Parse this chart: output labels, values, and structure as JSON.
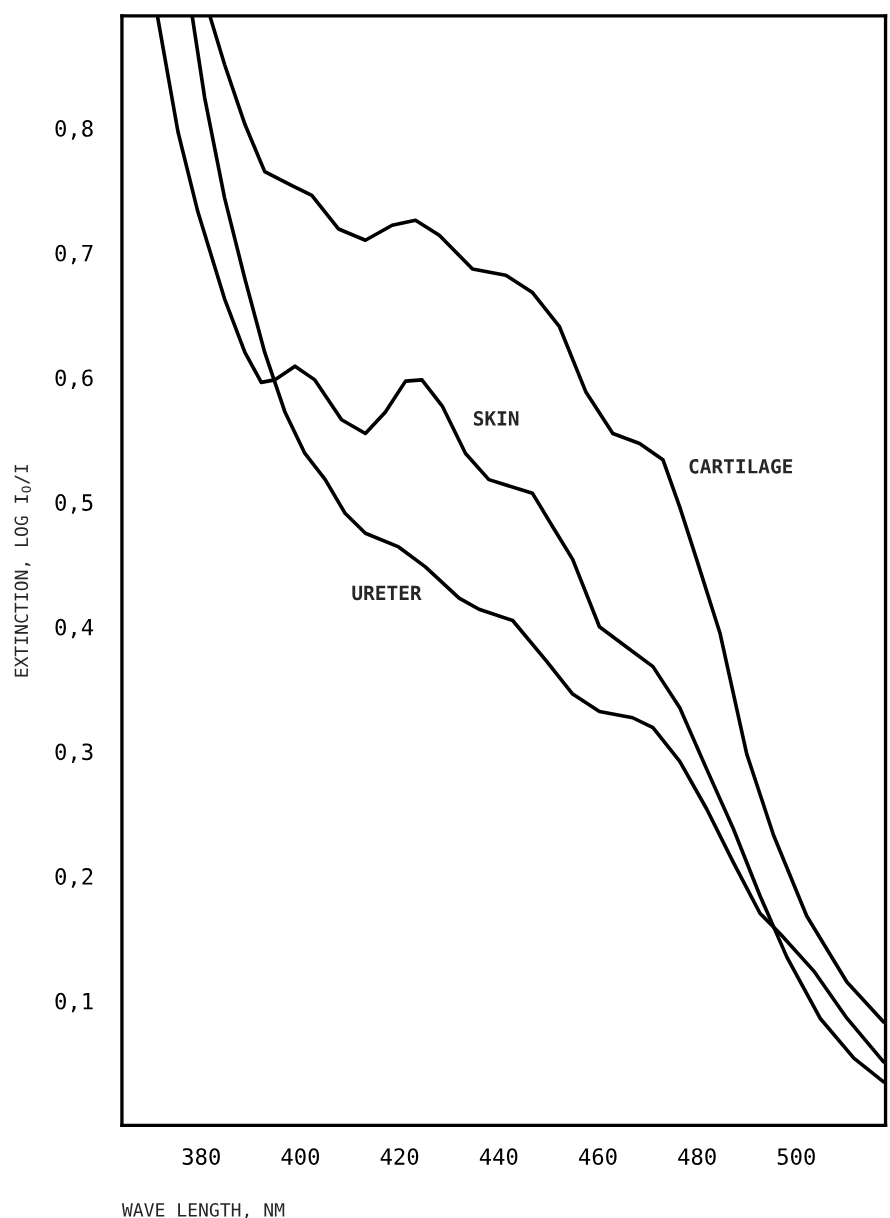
{
  "chart_data": {
    "type": "line",
    "xlabel": "WAVE LENGTH, NM",
    "ylabel": "EXTINCTION, LOG I$_{0}$/I",
    "xlim": [
      364,
      518
    ],
    "xticks": [
      380,
      400,
      420,
      440,
      460,
      480,
      500
    ],
    "ylim": [
      0,
      0.89
    ],
    "yticks": [
      {
        "value": 0.1,
        "label": "0,1"
      },
      {
        "value": 0.2,
        "label": "0,2"
      },
      {
        "value": 0.3,
        "label": "0,3"
      },
      {
        "value": 0.4,
        "label": "0,4"
      },
      {
        "value": 0.5,
        "label": "0,5"
      },
      {
        "value": 0.6,
        "label": "0,6"
      },
      {
        "value": 0.7,
        "label": "0,7"
      },
      {
        "value": 0.8,
        "label": "0,8"
      }
    ],
    "grid": false,
    "marker": "none",
    "line_style": "solid",
    "series": [
      {
        "color": "#000000",
        "x": [
          381.8,
          384.7,
          388.8,
          392.8,
          398.2,
          402.3,
          407.7,
          413.1,
          418.5,
          423.2,
          428.0,
          434.7,
          441.4,
          446.8,
          452.2,
          457.6,
          463.0,
          468.4,
          473.1,
          476.5,
          479.9,
          484.6,
          490.0,
          495.4,
          502.1,
          510.2,
          517.6
        ],
        "values": [
          0.889,
          0.851,
          0.803,
          0.765,
          0.754,
          0.746,
          0.719,
          0.71,
          0.722,
          0.726,
          0.714,
          0.687,
          0.682,
          0.668,
          0.641,
          0.588,
          0.555,
          0.547,
          0.534,
          0.496,
          0.454,
          0.395,
          0.298,
          0.233,
          0.168,
          0.115,
          0.083
        ]
      },
      {
        "color": "#000000",
        "x": [
          371.2,
          375.3,
          379.3,
          384.7,
          388.8,
          392.1,
          394.8,
          398.9,
          402.9,
          408.3,
          413.1,
          417.1,
          421.2,
          424.5,
          428.6,
          433.3,
          438.0,
          446.8,
          450.9,
          454.9,
          460.3,
          465.7,
          471.1,
          476.5,
          481.9,
          487.3,
          492.7,
          498.1,
          504.8,
          511.6,
          517.6
        ],
        "values": [
          0.889,
          0.797,
          0.733,
          0.663,
          0.62,
          0.596,
          0.598,
          0.609,
          0.598,
          0.566,
          0.555,
          0.572,
          0.597,
          0.598,
          0.577,
          0.539,
          0.518,
          0.507,
          0.48,
          0.454,
          0.4,
          0.384,
          0.368,
          0.335,
          0.286,
          0.238,
          0.184,
          0.135,
          0.086,
          0.054,
          0.035
        ]
      },
      {
        "color": "#000000",
        "x": [
          378.2,
          380.7,
          384.7,
          388.8,
          392.8,
          396.9,
          400.9,
          405.0,
          409.0,
          413.1,
          419.8,
          425.2,
          432.0,
          436.0,
          442.8,
          449.5,
          454.9,
          460.3,
          467.0,
          471.1,
          476.5,
          481.9,
          487.3,
          492.7,
          496.7,
          503.5,
          510.2,
          517.6
        ],
        "values": [
          0.889,
          0.824,
          0.744,
          0.679,
          0.62,
          0.572,
          0.539,
          0.518,
          0.491,
          0.475,
          0.464,
          0.448,
          0.423,
          0.414,
          0.405,
          0.373,
          0.346,
          0.332,
          0.327,
          0.319,
          0.292,
          0.254,
          0.211,
          0.17,
          0.154,
          0.124,
          0.086,
          0.051
        ]
      }
    ],
    "annotations": [
      {
        "text": "SKIN",
        "x": 433.3,
        "y": 0.539
      },
      {
        "text": "CARTILAGE",
        "x": 473.1,
        "y": 0.534
      },
      {
        "text": "URETER",
        "x": 425.2,
        "y": 0.448
      }
    ]
  }
}
